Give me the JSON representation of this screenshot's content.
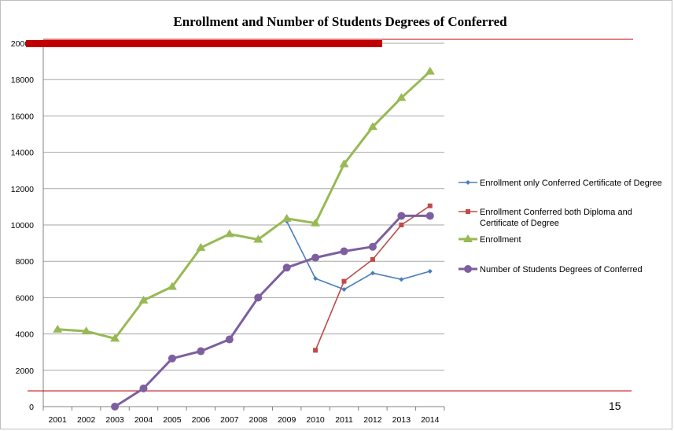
{
  "page_number": "15",
  "chart_data": {
    "type": "line",
    "title": "Enrollment  and  Number  of Students  Degrees of Conferred",
    "xlabel": "",
    "ylabel": "",
    "x": [
      "2001",
      "2002",
      "2003",
      "2004",
      "2005",
      "2006",
      "2007",
      "2008",
      "2009",
      "2010",
      "2011",
      "2012",
      "2013",
      "2014"
    ],
    "ylim": [
      0,
      20000
    ],
    "yticks": [
      0,
      2000,
      4000,
      6000,
      8000,
      10000,
      12000,
      14000,
      16000,
      18000,
      20000
    ],
    "ytick_labels": [
      "0",
      "2000",
      "4000",
      "6000",
      "8000",
      "10000",
      "12000",
      "14000",
      "16000",
      "18000",
      "20000"
    ],
    "grid": true,
    "legend_position": "right",
    "series": [
      {
        "name": "Enrollment only Conferred Certificate of Degree",
        "color": "#4a7ebb",
        "marker": "diamond",
        "values": [
          null,
          null,
          null,
          null,
          null,
          null,
          null,
          null,
          10200,
          7050,
          6450,
          7350,
          7000,
          7450
        ]
      },
      {
        "name": "Enrollment Conferred both Diploma and Certificate of Degree",
        "legend_lines": [
          "Enrollment Conferred both Diploma and",
          "Certificate of Degree"
        ],
        "color": "#be4b48",
        "marker": "square",
        "values": [
          null,
          null,
          null,
          null,
          null,
          null,
          null,
          null,
          null,
          3100,
          6900,
          8100,
          10000,
          11050
        ]
      },
      {
        "name": "Enrollment",
        "color": "#98b954",
        "marker": "triangle",
        "values": [
          4250,
          4150,
          3750,
          5850,
          6600,
          8750,
          9500,
          9200,
          10350,
          10100,
          13350,
          15400,
          17000,
          18450
        ]
      },
      {
        "name": "Number of Students Degrees of Conferred",
        "color": "#7d5fa0",
        "marker": "circle",
        "values": [
          null,
          null,
          0,
          1000,
          2650,
          3050,
          3700,
          6000,
          7650,
          8200,
          8550,
          8800,
          10500,
          10500
        ]
      }
    ],
    "decor_colors": {
      "red_bar": "#c00000",
      "red_line": "#c00000",
      "grid": "#a6a6a6",
      "axis": "#808080"
    }
  }
}
